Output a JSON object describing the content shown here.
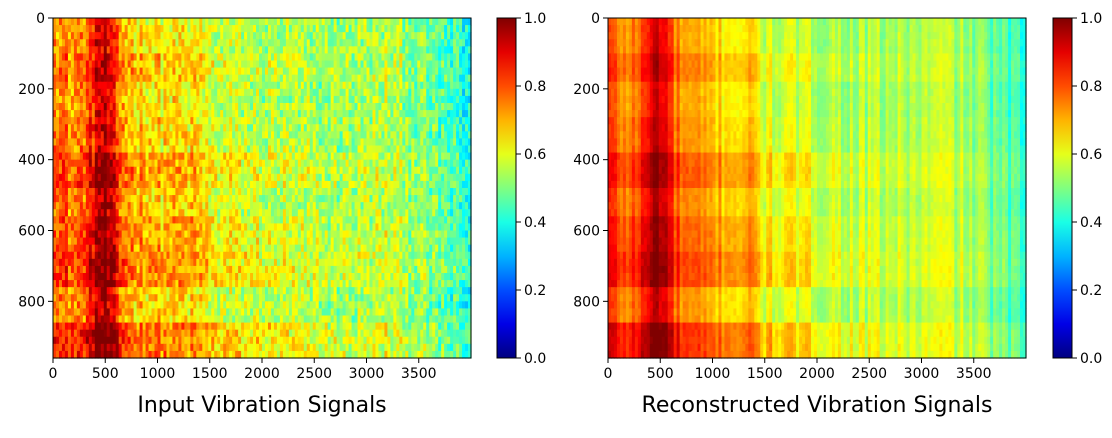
{
  "chart_data": [
    {
      "type": "heatmap",
      "title": "",
      "caption": "Input Vibration Signals",
      "xlabel": "",
      "ylabel": "",
      "xlim": [
        0,
        4000
      ],
      "ylim": [
        960,
        0
      ],
      "x_ticks": [
        "0",
        "500",
        "1000",
        "1500",
        "2000",
        "2500",
        "3000",
        "3500"
      ],
      "y_ticks": [
        "0",
        "200",
        "400",
        "600",
        "800"
      ],
      "colorbar": {
        "min": 0.0,
        "max": 1.0,
        "ticks": [
          "0.0",
          "0.2",
          "0.4",
          "0.6",
          "0.8",
          "1.0"
        ],
        "colormap": "jet"
      },
      "noise": 0.09,
      "row_bands": [
        {
          "y0": 0,
          "y1": 100,
          "gain": 0.0
        },
        {
          "y0": 100,
          "y1": 190,
          "gain": 0.04
        },
        {
          "y0": 190,
          "y1": 280,
          "gain": 0.0
        },
        {
          "y0": 280,
          "y1": 380,
          "gain": 0.02
        },
        {
          "y0": 380,
          "y1": 480,
          "gain": 0.08
        },
        {
          "y0": 480,
          "y1": 570,
          "gain": 0.03
        },
        {
          "y0": 570,
          "y1": 670,
          "gain": 0.07
        },
        {
          "y0": 670,
          "y1": 770,
          "gain": 0.1
        },
        {
          "y0": 770,
          "y1": 870,
          "gain": 0.02
        },
        {
          "y0": 870,
          "y1": 960,
          "gain": 0.12
        }
      ],
      "column_profile": {
        "x": [
          0,
          50,
          200,
          350,
          420,
          500,
          560,
          650,
          800,
          1000,
          1400,
          1500,
          2000,
          2500,
          3000,
          3200,
          3500,
          3800,
          4000
        ],
        "value": [
          0.8,
          0.74,
          0.7,
          0.78,
          0.9,
          0.92,
          0.85,
          0.72,
          0.66,
          0.64,
          0.62,
          0.56,
          0.54,
          0.52,
          0.53,
          0.55,
          0.5,
          0.43,
          0.38
        ]
      }
    },
    {
      "type": "heatmap",
      "title": "",
      "caption": "Reconstructed Vibration Signals",
      "xlabel": "",
      "ylabel": "",
      "xlim": [
        0,
        4000
      ],
      "ylim": [
        960,
        0
      ],
      "x_ticks": [
        "0",
        "500",
        "1000",
        "1500",
        "2000",
        "2500",
        "3000",
        "3500"
      ],
      "y_ticks": [
        "0",
        "200",
        "400",
        "600",
        "800"
      ],
      "colorbar": {
        "min": 0.0,
        "max": 1.0,
        "ticks": [
          "0.0",
          "0.2",
          "0.4",
          "0.6",
          "0.8",
          "1.0"
        ],
        "colormap": "jet"
      },
      "noise": 0.02,
      "row_bands": [
        {
          "y0": 0,
          "y1": 100,
          "gain": 0.0
        },
        {
          "y0": 100,
          "y1": 190,
          "gain": 0.04
        },
        {
          "y0": 190,
          "y1": 280,
          "gain": 0.0
        },
        {
          "y0": 280,
          "y1": 380,
          "gain": 0.02
        },
        {
          "y0": 380,
          "y1": 480,
          "gain": 0.08
        },
        {
          "y0": 480,
          "y1": 570,
          "gain": 0.03
        },
        {
          "y0": 570,
          "y1": 670,
          "gain": 0.07
        },
        {
          "y0": 670,
          "y1": 770,
          "gain": 0.1
        },
        {
          "y0": 770,
          "y1": 870,
          "gain": 0.02
        },
        {
          "y0": 870,
          "y1": 960,
          "gain": 0.12
        }
      ],
      "column_profile": {
        "x": [
          0,
          50,
          200,
          350,
          420,
          500,
          560,
          650,
          800,
          1000,
          1400,
          1500,
          2000,
          2500,
          3000,
          3200,
          3500,
          3800,
          4000
        ],
        "value": [
          0.82,
          0.76,
          0.72,
          0.8,
          0.9,
          0.92,
          0.86,
          0.74,
          0.68,
          0.66,
          0.64,
          0.57,
          0.55,
          0.53,
          0.54,
          0.56,
          0.51,
          0.44,
          0.4
        ]
      }
    }
  ]
}
